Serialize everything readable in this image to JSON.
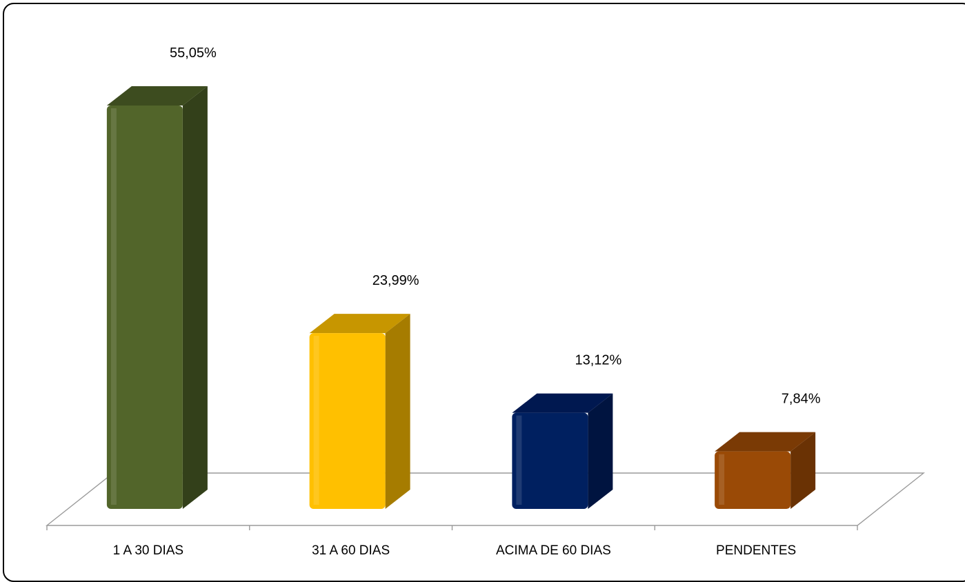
{
  "chart_data": {
    "type": "bar",
    "style": "3d-column",
    "categories": [
      "1 A 30 DIAS",
      "31 A 60 DIAS",
      "ACIMA DE 60 DIAS",
      "PENDENTES"
    ],
    "values": [
      55.05,
      23.99,
      13.12,
      7.84
    ],
    "data_labels": [
      "55,05%",
      "23,99%",
      "13,12%",
      "7,84%"
    ],
    "colors": [
      "#52652a",
      "#ffc000",
      "#002060",
      "#9a4a06"
    ],
    "colors_dark": [
      "#33401a",
      "#a67c00",
      "#001440",
      "#6a3204"
    ],
    "colors_top": [
      "#3d4c1f",
      "#c79600",
      "#001850",
      "#7a3a05"
    ],
    "ylim": [
      0,
      55.05
    ],
    "grid": false,
    "legend": false
  }
}
